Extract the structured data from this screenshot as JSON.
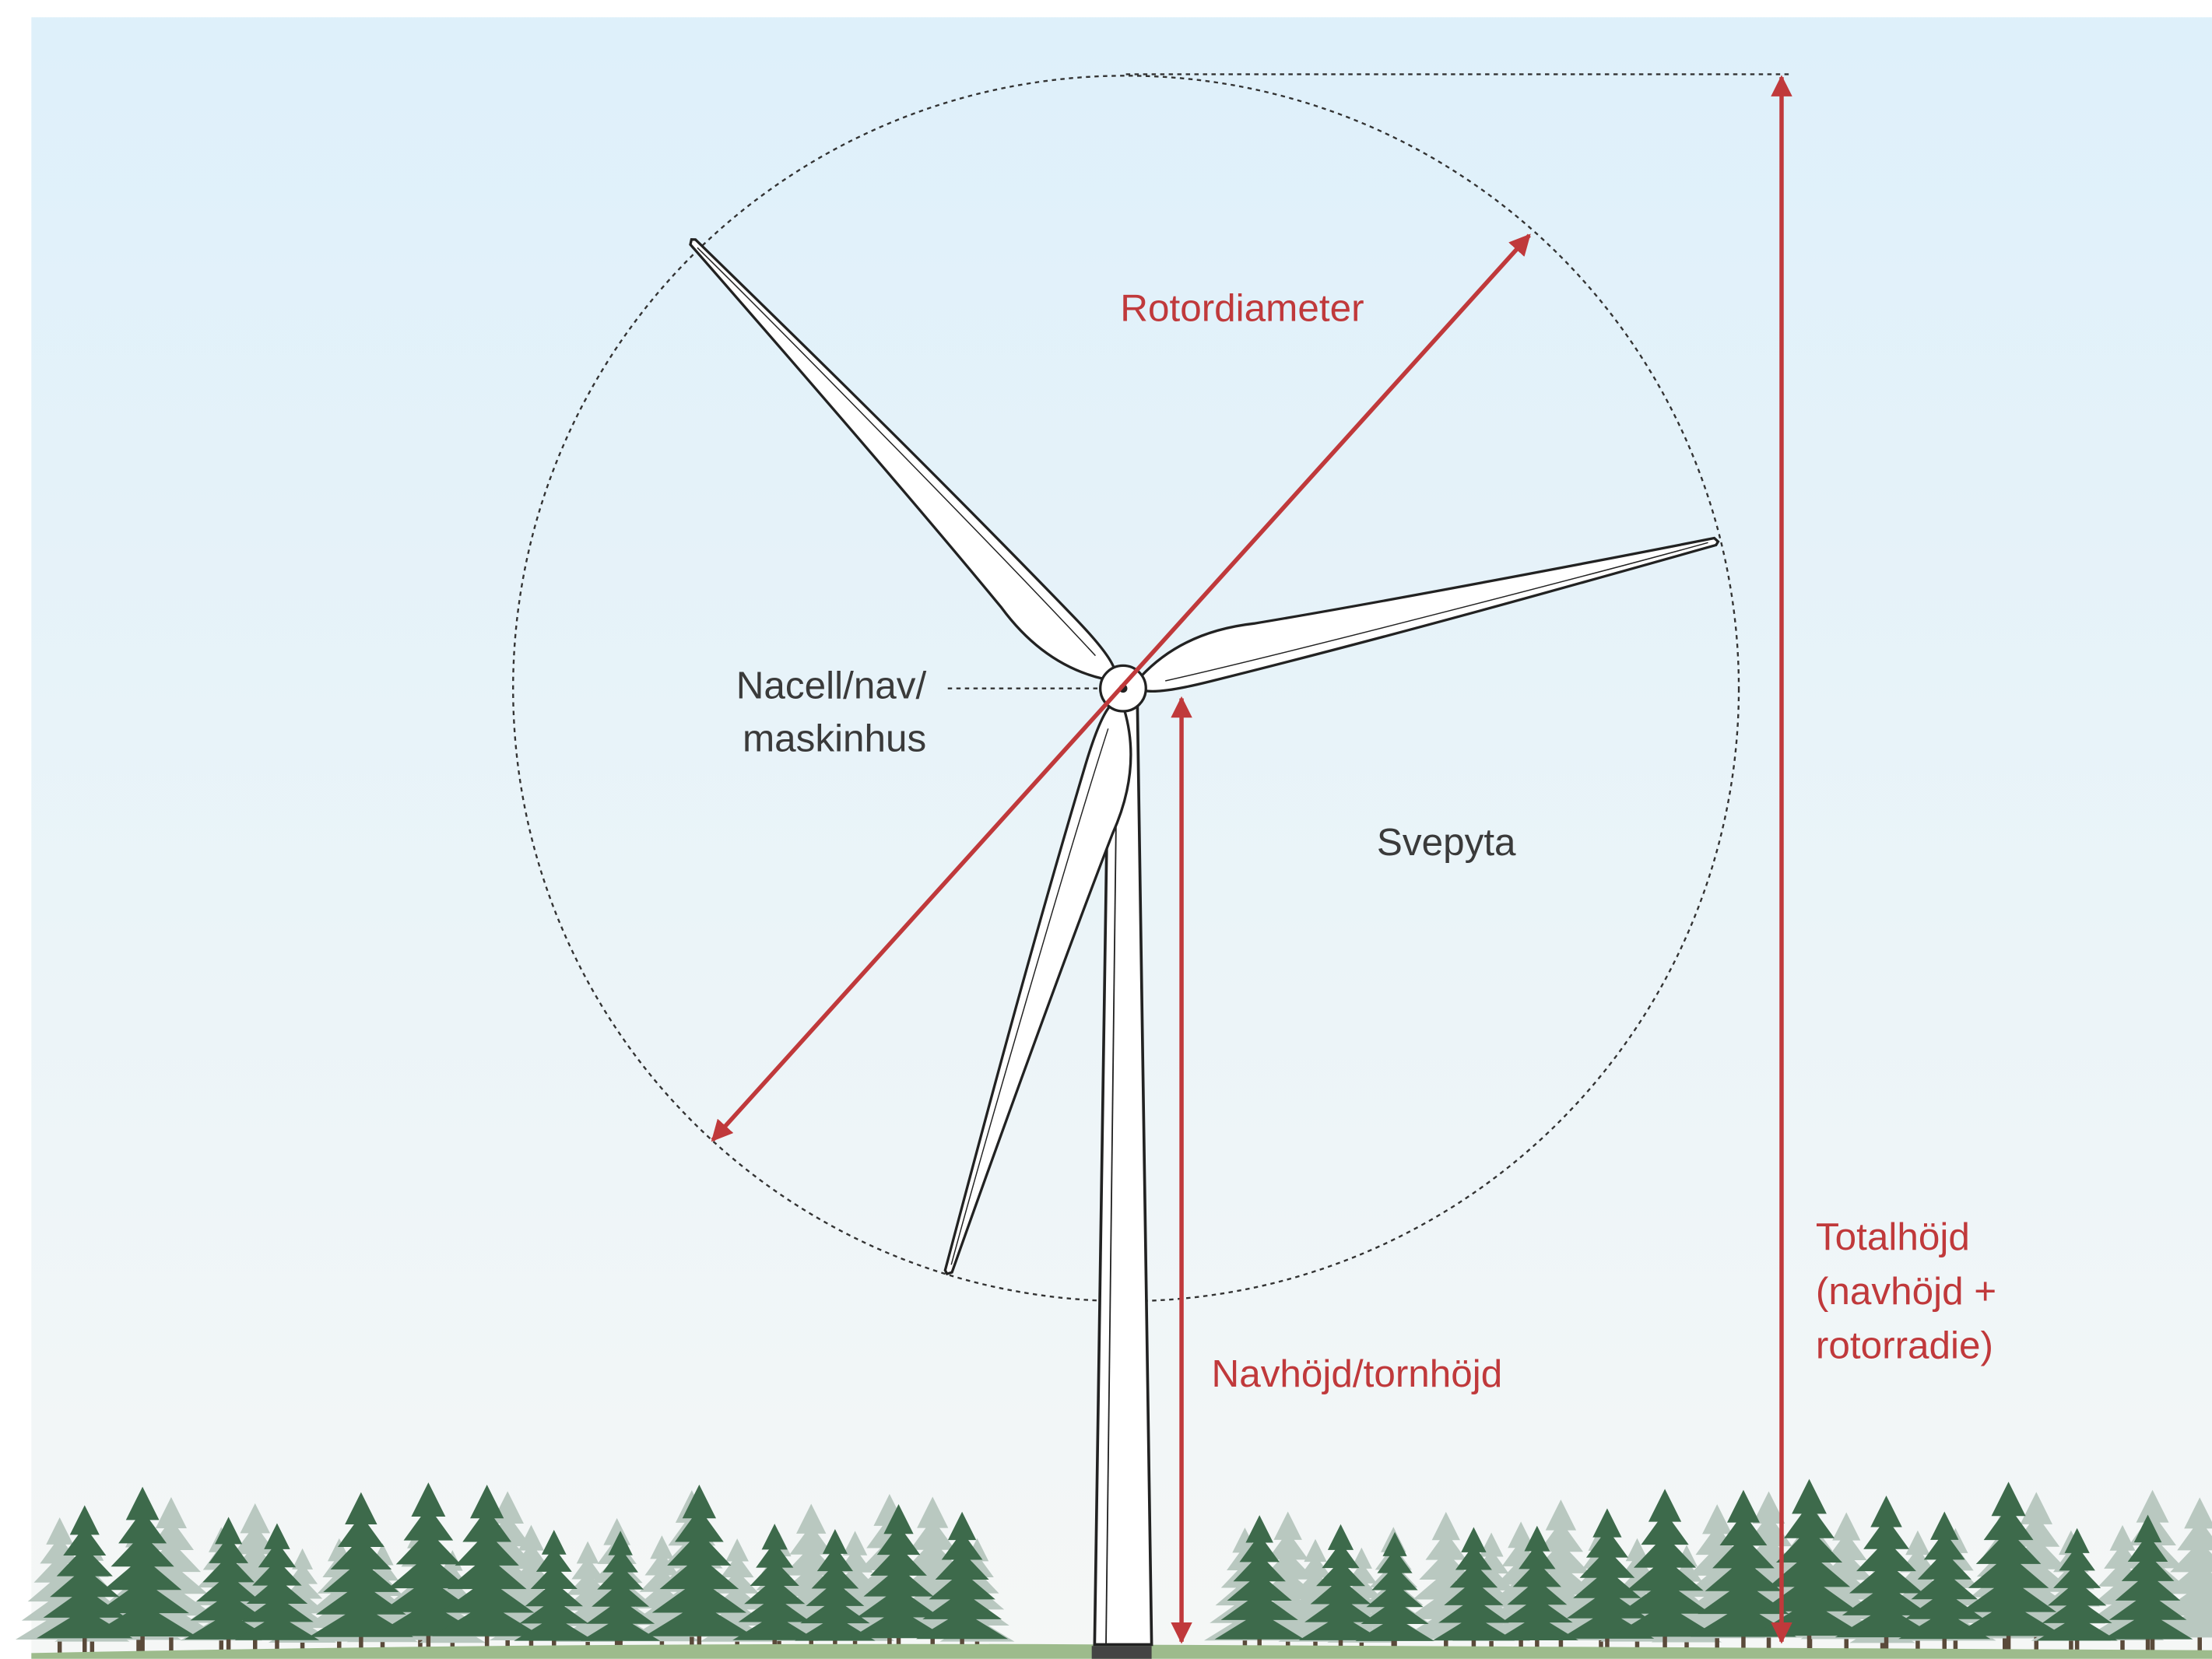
{
  "labels": {
    "rotor_diameter": "Rotordiameter",
    "nacelle": [
      "Nacell/nav/",
      "maskinhus"
    ],
    "swept_area": "Svepyta",
    "hub_height": "Navhöjd/tornhöjd",
    "total_height": [
      "Totalhöjd",
      "(navhöjd +",
      "rotorradie)"
    ]
  }
}
